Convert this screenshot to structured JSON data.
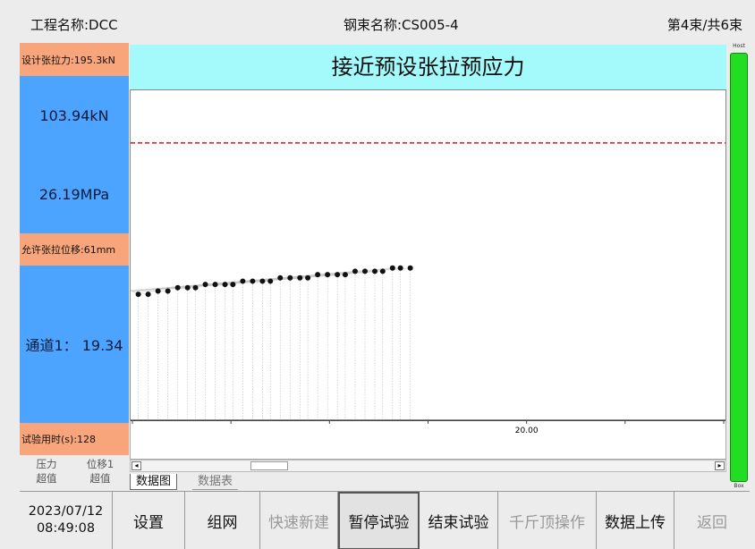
{
  "header": {
    "project": "工程名称:DCC",
    "strand": "钢束名称:CS005-4",
    "count": "第4束/共6束"
  },
  "left_panel": {
    "design_force_label": "设计张拉力:195.3kN",
    "force_value": "103.94kN",
    "pressure_value": "26.19MPa",
    "allowed_displacement_label": "允许张拉位移:61mm",
    "channel_value": "通道1： 19.34",
    "time_label": "试验用时(s):128",
    "pressure_over": "压力\n超值",
    "displacement_over": "位移1\n超值"
  },
  "chart": {
    "title": "接近预设张拉预应力",
    "x_tick_label": "20.00"
  },
  "chart_data": {
    "type": "scatter",
    "title": "接近预设张拉预应力",
    "x_ticks": [
      "20.00"
    ],
    "xlim": [
      0,
      30
    ],
    "target_line_fraction": 0.84,
    "series": [
      {
        "x": [
          0.3,
          0.8,
          1.3,
          1.8,
          2.3,
          2.8,
          3.2,
          3.7,
          4.2,
          4.7,
          5.1,
          5.6,
          6.1,
          6.6,
          7.0,
          7.5,
          8.0,
          8.5,
          8.9,
          9.4,
          9.9,
          10.4,
          10.8,
          11.3,
          11.8,
          12.3,
          12.7,
          13.2,
          13.6,
          14.1
        ],
        "y": [
          0.38,
          0.38,
          0.39,
          0.39,
          0.4,
          0.4,
          0.4,
          0.41,
          0.41,
          0.41,
          0.41,
          0.42,
          0.42,
          0.42,
          0.42,
          0.43,
          0.43,
          0.43,
          0.43,
          0.44,
          0.44,
          0.44,
          0.44,
          0.45,
          0.45,
          0.45,
          0.45,
          0.46,
          0.46,
          0.46
        ]
      }
    ]
  },
  "tabs": {
    "chart": "数据图",
    "table": "数据表"
  },
  "right_bar": {
    "top": "Host",
    "bottom": "Box",
    "level": 1.0
  },
  "toolbar": {
    "date": "2023/07/12",
    "time": "08:49:08",
    "settings": "设置",
    "network": "组网",
    "quick_new": "快速新建",
    "pause": "暂停试验",
    "end": "结束试验",
    "jack": "千斤顶操作",
    "upload": "数据上传",
    "back": "返回"
  }
}
